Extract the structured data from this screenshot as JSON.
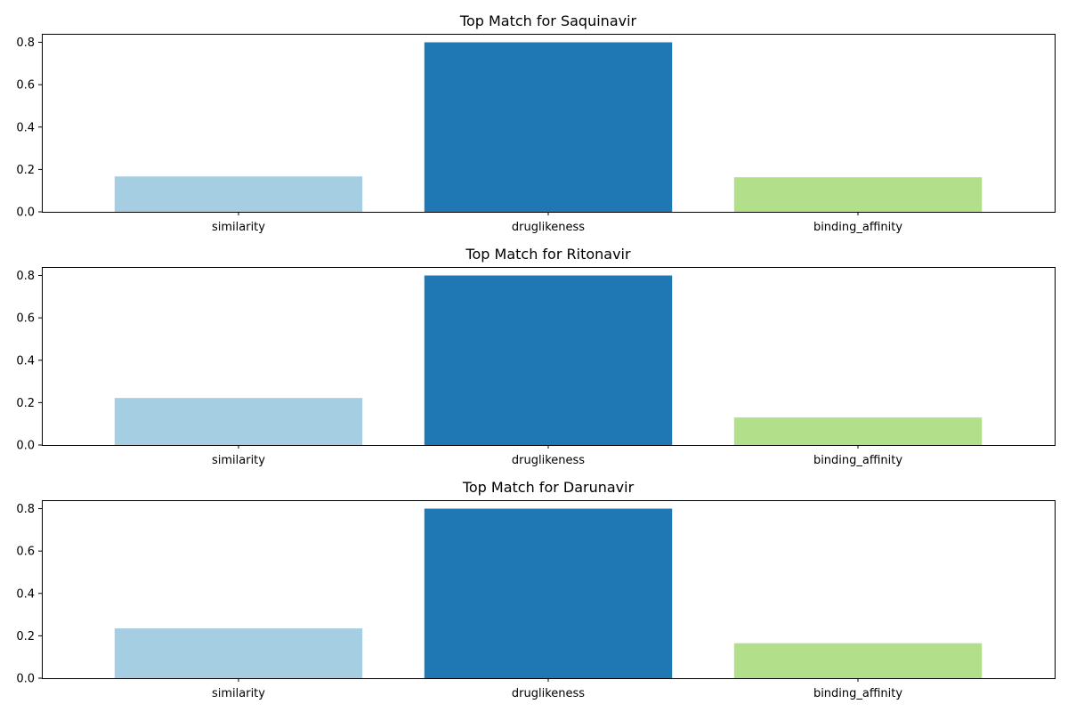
{
  "chart_data": [
    {
      "type": "bar",
      "title": "Top Match for Saquinavir",
      "categories": [
        "similarity",
        "druglikeness",
        "binding_affinity"
      ],
      "values": [
        0.167,
        0.8,
        0.163
      ],
      "ylim": [
        0,
        0.84
      ],
      "yticks": [
        "0.0",
        "0.2",
        "0.4",
        "0.6",
        "0.8"
      ],
      "colors": [
        "#a6cee3",
        "#1f78b4",
        "#b2df8a"
      ],
      "xlabel": "",
      "ylabel": "",
      "grid": false
    },
    {
      "type": "bar",
      "title": "Top Match for Ritonavir",
      "categories": [
        "similarity",
        "druglikeness",
        "binding_affinity"
      ],
      "values": [
        0.222,
        0.8,
        0.13
      ],
      "ylim": [
        0,
        0.84
      ],
      "yticks": [
        "0.0",
        "0.2",
        "0.4",
        "0.6",
        "0.8"
      ],
      "colors": [
        "#a6cee3",
        "#1f78b4",
        "#b2df8a"
      ],
      "xlabel": "",
      "ylabel": "",
      "grid": false
    },
    {
      "type": "bar",
      "title": "Top Match for Darunavir",
      "categories": [
        "similarity",
        "druglikeness",
        "binding_affinity"
      ],
      "values": [
        0.235,
        0.8,
        0.165
      ],
      "ylim": [
        0,
        0.84
      ],
      "yticks": [
        "0.0",
        "0.2",
        "0.4",
        "0.6",
        "0.8"
      ],
      "colors": [
        "#a6cee3",
        "#1f78b4",
        "#b2df8a"
      ],
      "xlabel": "",
      "ylabel": "",
      "grid": false
    }
  ]
}
